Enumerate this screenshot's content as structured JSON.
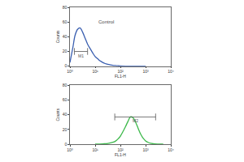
{
  "chart_data": [
    {
      "type": "line",
      "xlabel": "FL1-H",
      "ylabel": "Counts",
      "log": "x",
      "x": [
        1,
        1.3,
        1.6,
        2,
        2.5,
        3.2,
        4,
        5,
        6.3,
        8,
        10,
        12.6,
        16,
        20,
        25,
        32,
        40,
        50,
        63,
        80,
        100,
        200,
        1000
      ],
      "values": [
        5,
        25,
        42,
        50,
        52,
        46,
        38,
        30,
        24,
        18,
        13,
        10,
        7,
        5,
        3.5,
        2.5,
        1.8,
        1.2,
        0.8,
        0.5,
        0.3,
        0.1,
        0
      ],
      "color": "#3a5fb0",
      "xlim": [
        1,
        10000
      ],
      "xticks": [
        {
          "value": 1,
          "label": "10⁰"
        },
        {
          "value": 10,
          "label": "10¹"
        },
        {
          "value": 100,
          "label": "10²"
        },
        {
          "value": 1000,
          "label": "10³"
        },
        {
          "value": 10000,
          "label": "10⁴"
        }
      ],
      "ylim": [
        0,
        80
      ],
      "yticks": [
        0,
        20,
        40,
        60,
        80
      ],
      "annotations": [
        {
          "text": "Control",
          "x": 12,
          "y": 60
        }
      ],
      "gate": {
        "label": "M1",
        "x": [
          1.5,
          5
        ],
        "y": 20
      }
    },
    {
      "type": "line",
      "xlabel": "FL1-H",
      "ylabel": "Counts",
      "log": "x",
      "x": [
        10,
        20,
        32,
        50,
        63,
        80,
        100,
        126,
        160,
        200,
        250,
        316,
        400,
        500,
        630,
        800,
        1000,
        1260,
        1600,
        2000,
        3200,
        5000
      ],
      "values": [
        0,
        0.5,
        1,
        2.5,
        4,
        7,
        11,
        17,
        24,
        31,
        37,
        36,
        30,
        22,
        14,
        8,
        4.5,
        2.5,
        1.2,
        0.6,
        0.2,
        0
      ],
      "color": "#3cb84a",
      "xlim": [
        1,
        10000
      ],
      "xticks": [
        {
          "value": 1,
          "label": "10⁰"
        },
        {
          "value": 10,
          "label": "10¹"
        },
        {
          "value": 100,
          "label": "10²"
        },
        {
          "value": 1000,
          "label": "10³"
        },
        {
          "value": 10000,
          "label": "10⁴"
        }
      ],
      "ylim": [
        0,
        80
      ],
      "yticks": [
        0,
        20,
        40,
        60,
        80
      ],
      "annotations": [],
      "gate": {
        "label": "M2",
        "x": [
          60,
          2500
        ],
        "y": 37
      }
    }
  ]
}
